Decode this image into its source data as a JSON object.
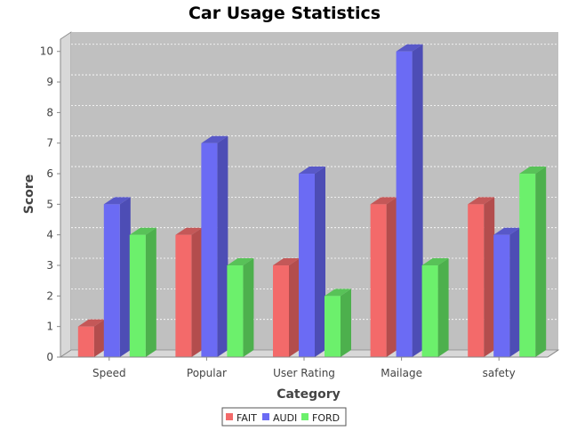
{
  "chart_data": {
    "type": "bar",
    "title": "Car Usage Statistics",
    "xlabel": "Category",
    "ylabel": "Score",
    "categories": [
      "Speed",
      "Popular",
      "User Rating",
      "Mailage",
      "safety"
    ],
    "series": [
      {
        "name": "FAIT",
        "values": [
          1,
          4,
          3,
          5,
          5
        ],
        "color": "#f36a6a",
        "side": "#b34d4d",
        "top": "#c45858"
      },
      {
        "name": "AUDI",
        "values": [
          5,
          7,
          6,
          10,
          4
        ],
        "color": "#6b6bf4",
        "side": "#4d4db5",
        "top": "#5858c8"
      },
      {
        "name": "FORD",
        "values": [
          4,
          3,
          2,
          3,
          6
        ],
        "color": "#6cf06c",
        "side": "#4db04d",
        "top": "#58c258"
      }
    ],
    "ylim": [
      0,
      10
    ],
    "yticks": [
      0,
      1,
      2,
      3,
      4,
      5,
      6,
      7,
      8,
      9,
      10
    ],
    "grid": true,
    "legend": "bottom",
    "plot_background": "#c0c0c0",
    "three_d": true
  }
}
